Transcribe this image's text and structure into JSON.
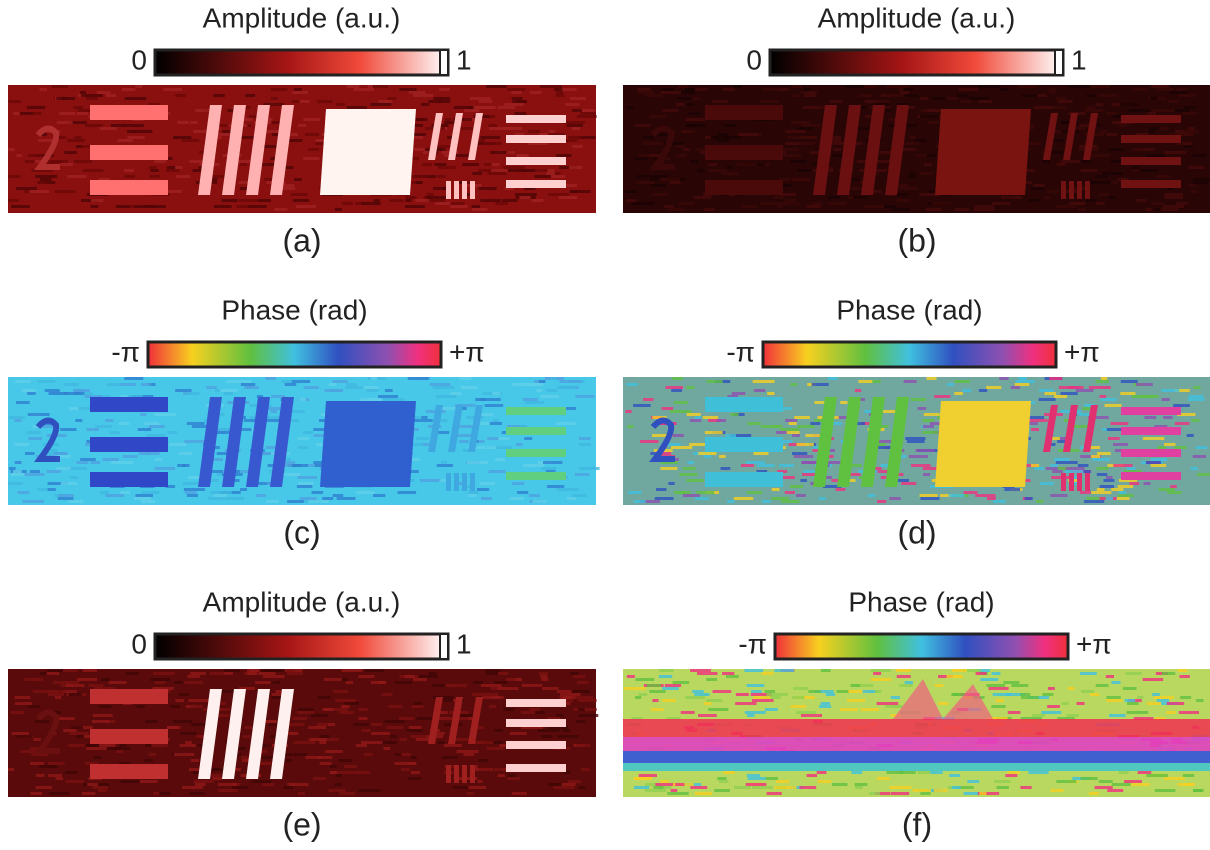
{
  "panels": [
    {
      "colorbar": {
        "title": "Amplitude (a.u.)",
        "min_label": "0",
        "max_label": "1"
      },
      "caption": "(a)"
    },
    {
      "colorbar": {
        "title": "Amplitude (a.u.)",
        "min_label": "0",
        "max_label": "1"
      },
      "caption": "(b)"
    },
    {
      "colorbar": {
        "title": "Phase (rad)",
        "min_label": "-π",
        "max_label": "+π"
      },
      "caption": "(c)"
    },
    {
      "colorbar": {
        "title": "Phase (rad)",
        "min_label": "-π",
        "max_label": "+π"
      },
      "caption": "(d)"
    },
    {
      "colorbar": {
        "title": "Amplitude (a.u.)",
        "min_label": "0",
        "max_label": "1"
      },
      "caption": "(e)"
    },
    {
      "colorbar": {
        "title": "Phase (rad)",
        "min_label": "-π",
        "max_label": "+π"
      },
      "caption": "(f)"
    }
  ]
}
